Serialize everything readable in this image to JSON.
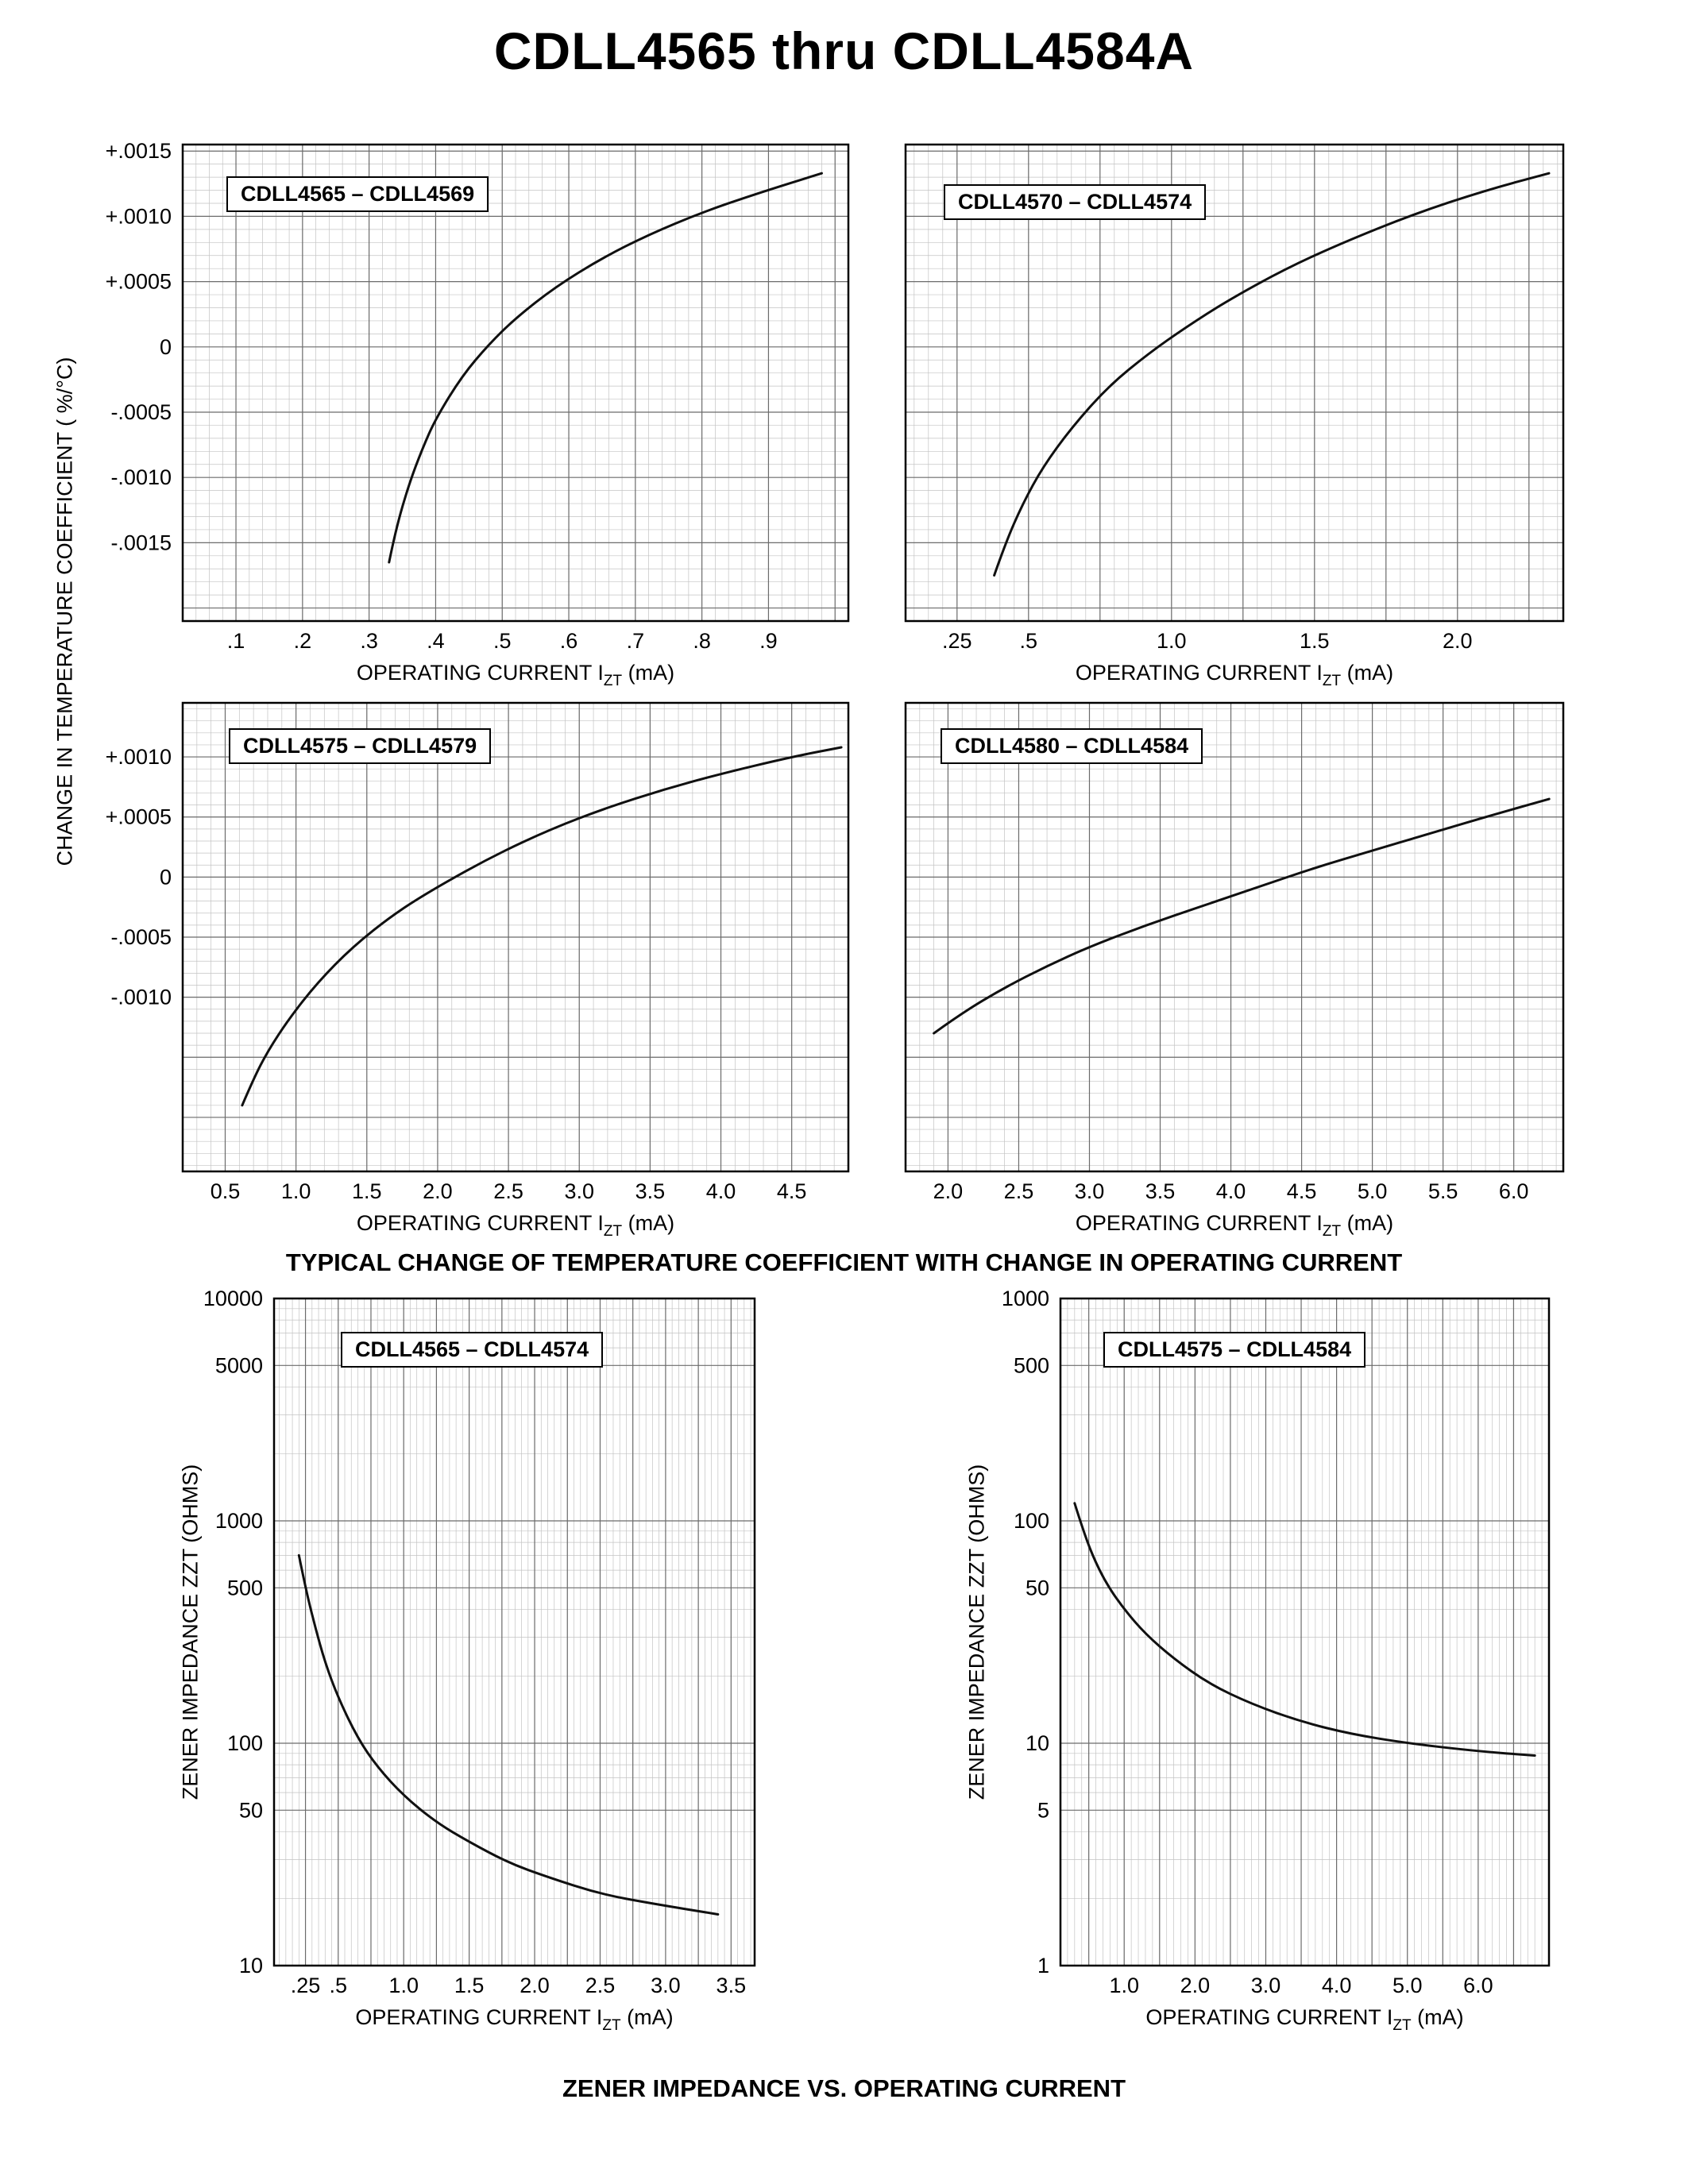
{
  "page": {
    "title": "CDLL4565 thru CDLL4584A",
    "tc_y_label": "CHANGE IN TEMPERATURE COEFFICIENT ( %/°C)",
    "zz_y_label": "ZENER IMPEDANCE ZZT (OHMS)",
    "x_axis_label": {
      "prefix": "OPERATING CURRENT I",
      "sub": "ZT",
      "suffix": " (mA)"
    },
    "caption_tc": "TYPICAL CHANGE OF TEMPERATURE COEFFICIENT WITH CHANGE IN OPERATING CURRENT",
    "caption_zz": "ZENER IMPEDANCE VS. OPERATING CURRENT"
  },
  "chart_data": [
    {
      "id": "tc1",
      "type": "line",
      "title": "CDLL4565 – CDLL4569",
      "xlabel": "OPERATING CURRENT IZT (mA)",
      "ylabel": "CHANGE IN TEMPERATURE COEFFICIENT (%/°C)",
      "x_scale": "linear",
      "y_scale": "linear",
      "xlim": [
        0.02,
        1.02
      ],
      "ylim": [
        -0.0021,
        0.00155
      ],
      "x_ticks": [
        {
          "v": 0.1,
          "l": ".1"
        },
        {
          "v": 0.2,
          "l": ".2"
        },
        {
          "v": 0.3,
          "l": ".3"
        },
        {
          "v": 0.4,
          "l": ".4"
        },
        {
          "v": 0.5,
          "l": ".5"
        },
        {
          "v": 0.6,
          "l": ".6"
        },
        {
          "v": 0.7,
          "l": ".7"
        },
        {
          "v": 0.8,
          "l": ".8"
        },
        {
          "v": 0.9,
          "l": ".9"
        }
      ],
      "y_ticks": [
        {
          "v": 0.0015,
          "l": "+.0015"
        },
        {
          "v": 0.001,
          "l": "+.0010"
        },
        {
          "v": 0.0005,
          "l": "+.0005"
        },
        {
          "v": 0,
          "l": "0"
        },
        {
          "v": -0.0005,
          "l": "-.0005"
        },
        {
          "v": -0.001,
          "l": "-.0010"
        },
        {
          "v": -0.0015,
          "l": "-.0015"
        }
      ],
      "grid": {
        "x_minor": 0.02,
        "x_major": 0.1,
        "y_minor": 0.0001,
        "y_major": 0.0005
      },
      "series": [
        {
          "name": "typical temperature coefficient",
          "x": [
            0.33,
            0.34,
            0.36,
            0.38,
            0.4,
            0.44,
            0.48,
            0.52,
            0.58,
            0.65,
            0.72,
            0.8,
            0.88,
            0.98
          ],
          "y": [
            -0.00165,
            -0.0014,
            -0.00105,
            -0.00078,
            -0.00055,
            -0.00022,
            2e-05,
            0.00022,
            0.00046,
            0.00068,
            0.00086,
            0.00103,
            0.00117,
            0.00133
          ]
        }
      ]
    },
    {
      "id": "tc2",
      "type": "line",
      "title": "CDLL4570 – CDLL4574",
      "xlabel": "OPERATING CURRENT IZT (mA)",
      "ylabel": "CHANGE IN TEMPERATURE COEFFICIENT (%/°C)",
      "x_scale": "linear",
      "y_scale": "linear",
      "xlim": [
        0.07,
        2.37
      ],
      "ylim": [
        -0.0021,
        0.00155
      ],
      "x_ticks": [
        {
          "v": 0.25,
          "l": ".25"
        },
        {
          "v": 0.5,
          "l": ".5"
        },
        {
          "v": 1.0,
          "l": "1.0"
        },
        {
          "v": 1.5,
          "l": "1.5"
        },
        {
          "v": 2.0,
          "l": "2.0"
        }
      ],
      "y_ticks": [],
      "grid": {
        "x_minor": 0.05,
        "x_major": 0.25,
        "y_minor": 0.0001,
        "y_major": 0.0005
      },
      "series": [
        {
          "name": "typical temperature coefficient",
          "x": [
            0.38,
            0.42,
            0.48,
            0.55,
            0.65,
            0.78,
            0.92,
            1.05,
            1.2,
            1.4,
            1.6,
            1.85,
            2.1,
            2.32
          ],
          "y": [
            -0.00175,
            -0.0015,
            -0.0012,
            -0.00092,
            -0.00062,
            -0.0003,
            -5e-05,
            0.00015,
            0.00036,
            0.0006,
            0.0008,
            0.00102,
            0.0012,
            0.00133
          ]
        }
      ]
    },
    {
      "id": "tc3",
      "type": "line",
      "title": "CDLL4575 – CDLL4579",
      "xlabel": "OPERATING CURRENT IZT (mA)",
      "ylabel": "CHANGE IN TEMPERATURE COEFFICIENT (%/°C)",
      "x_scale": "linear",
      "y_scale": "linear",
      "xlim": [
        0.2,
        4.9
      ],
      "ylim": [
        -0.00245,
        0.00145
      ],
      "x_ticks": [
        {
          "v": 0.5,
          "l": "0.5"
        },
        {
          "v": 1.0,
          "l": "1.0"
        },
        {
          "v": 1.5,
          "l": "1.5"
        },
        {
          "v": 2.0,
          "l": "2.0"
        },
        {
          "v": 2.5,
          "l": "2.5"
        },
        {
          "v": 3.0,
          "l": "3.0"
        },
        {
          "v": 3.5,
          "l": "3.5"
        },
        {
          "v": 4.0,
          "l": "4.0"
        },
        {
          "v": 4.5,
          "l": "4.5"
        }
      ],
      "y_ticks": [
        {
          "v": 0.001,
          "l": "+.0010"
        },
        {
          "v": 0.0005,
          "l": "+.0005"
        },
        {
          "v": 0,
          "l": "0"
        },
        {
          "v": -0.0005,
          "l": "-.0005"
        },
        {
          "v": -0.001,
          "l": "-.0010"
        }
      ],
      "grid": {
        "x_minor": 0.1,
        "x_major": 0.5,
        "y_minor": 0.0001,
        "y_major": 0.0005
      },
      "series": [
        {
          "name": "typical temperature coefficient",
          "x": [
            0.62,
            0.7,
            0.8,
            0.95,
            1.15,
            1.4,
            1.7,
            2.0,
            2.4,
            2.8,
            3.2,
            3.6,
            4.0,
            4.5,
            4.85
          ],
          "y": [
            -0.0019,
            -0.00168,
            -0.00145,
            -0.00118,
            -0.00088,
            -0.00058,
            -0.0003,
            -8e-05,
            0.00018,
            0.0004,
            0.00058,
            0.00073,
            0.00086,
            0.001,
            0.00108
          ]
        }
      ]
    },
    {
      "id": "tc4",
      "type": "line",
      "title": "CDLL4580 – CDLL4584",
      "xlabel": "OPERATING CURRENT IZT (mA)",
      "ylabel": "CHANGE IN TEMPERATURE COEFFICIENT (%/°C)",
      "x_scale": "linear",
      "y_scale": "linear",
      "xlim": [
        1.7,
        6.35
      ],
      "ylim": [
        -0.00245,
        0.00145
      ],
      "x_ticks": [
        {
          "v": 2.0,
          "l": "2.0"
        },
        {
          "v": 2.5,
          "l": "2.5"
        },
        {
          "v": 3.0,
          "l": "3.0"
        },
        {
          "v": 3.5,
          "l": "3.5"
        },
        {
          "v": 4.0,
          "l": "4.0"
        },
        {
          "v": 4.5,
          "l": "4.5"
        },
        {
          "v": 5.0,
          "l": "5.0"
        },
        {
          "v": 5.5,
          "l": "5.5"
        },
        {
          "v": 6.0,
          "l": "6.0"
        }
      ],
      "y_ticks": [],
      "grid": {
        "x_minor": 0.1,
        "x_major": 0.5,
        "y_minor": 0.0001,
        "y_major": 0.0005
      },
      "series": [
        {
          "name": "typical temperature coefficient",
          "x": [
            1.9,
            2.1,
            2.4,
            2.7,
            3.0,
            3.4,
            3.8,
            4.2,
            4.6,
            5.0,
            5.4,
            5.8,
            6.25
          ],
          "y": [
            -0.0013,
            -0.00113,
            -0.00092,
            -0.00074,
            -0.00058,
            -0.0004,
            -0.00024,
            -8e-05,
            8e-05,
            0.00022,
            0.00036,
            0.0005,
            0.00065
          ]
        }
      ]
    },
    {
      "id": "zz1",
      "type": "line",
      "title": "CDLL4565 – CDLL4574",
      "xlabel": "OPERATING CURRENT IZT (mA)",
      "ylabel": "ZENER IMPEDANCE ZZT (OHMS)",
      "x_scale": "linear",
      "y_scale": "log",
      "xlim": [
        0.01,
        3.68
      ],
      "ylim": [
        10,
        10000
      ],
      "x_ticks": [
        {
          "v": 0.25,
          "l": ".25"
        },
        {
          "v": 0.5,
          "l": ".5"
        },
        {
          "v": 1.0,
          "l": "1.0"
        },
        {
          "v": 1.5,
          "l": "1.5"
        },
        {
          "v": 2.0,
          "l": "2.0"
        },
        {
          "v": 2.5,
          "l": "2.5"
        },
        {
          "v": 3.0,
          "l": "3.0"
        },
        {
          "v": 3.5,
          "l": "3.5"
        }
      ],
      "y_ticks": [
        {
          "v": 10000,
          "l": "10000"
        },
        {
          "v": 5000,
          "l": "5000"
        },
        {
          "v": 1000,
          "l": "1000"
        },
        {
          "v": 500,
          "l": "500"
        },
        {
          "v": 100,
          "l": "100"
        },
        {
          "v": 50,
          "l": "50"
        },
        {
          "v": 10,
          "l": "10"
        }
      ],
      "grid": {
        "x_minor": 0.05,
        "x_major": 0.25
      },
      "series": [
        {
          "name": "typical zener impedance",
          "x": [
            0.2,
            0.25,
            0.32,
            0.4,
            0.5,
            0.65,
            0.8,
            1.0,
            1.25,
            1.5,
            1.8,
            2.1,
            2.5,
            2.9,
            3.4
          ],
          "y": [
            700,
            500,
            340,
            230,
            160,
            105,
            78,
            58,
            44,
            36,
            29,
            25,
            21,
            19,
            17
          ]
        }
      ]
    },
    {
      "id": "zz2",
      "type": "line",
      "title": "CDLL4575 – CDLL4584",
      "xlabel": "OPERATING CURRENT IZT (mA)",
      "ylabel": "ZENER IMPEDANCE ZZT (OHMS)",
      "x_scale": "linear",
      "y_scale": "log",
      "xlim": [
        0.1,
        7.0
      ],
      "ylim": [
        1,
        1000
      ],
      "x_ticks": [
        {
          "v": 1.0,
          "l": "1.0"
        },
        {
          "v": 2.0,
          "l": "2.0"
        },
        {
          "v": 3.0,
          "l": "3.0"
        },
        {
          "v": 4.0,
          "l": "4.0"
        },
        {
          "v": 5.0,
          "l": "5.0"
        },
        {
          "v": 6.0,
          "l": "6.0"
        }
      ],
      "y_ticks": [
        {
          "v": 1000,
          "l": "1000"
        },
        {
          "v": 500,
          "l": "500"
        },
        {
          "v": 100,
          "l": "100"
        },
        {
          "v": 50,
          "l": "50"
        },
        {
          "v": 10,
          "l": "10"
        },
        {
          "v": 5,
          "l": "5"
        },
        {
          "v": 1,
          "l": "1"
        }
      ],
      "grid": {
        "x_minor": 0.1,
        "x_major": 0.5
      },
      "series": [
        {
          "name": "typical zener impedance",
          "x": [
            0.3,
            0.4,
            0.55,
            0.75,
            1.0,
            1.3,
            1.7,
            2.2,
            2.8,
            3.5,
            4.2,
            5.0,
            6.0,
            6.8
          ],
          "y": [
            120,
            95,
            70,
            52,
            40,
            31,
            24,
            18.5,
            15,
            12.5,
            11,
            10,
            9.2,
            8.8
          ]
        }
      ]
    }
  ]
}
